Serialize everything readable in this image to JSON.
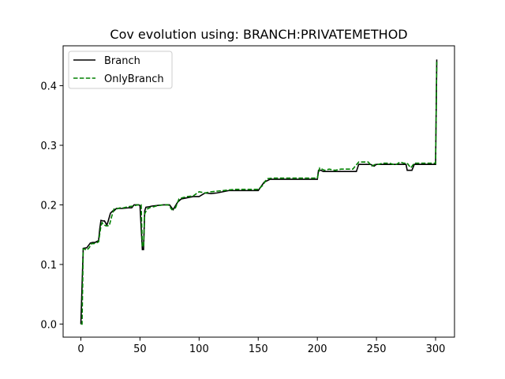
{
  "chart_data": {
    "type": "line",
    "title": "Cov evolution using: BRANCH:PRIVATEMETHOD",
    "xlabel": "",
    "ylabel": "",
    "xlim": [
      -15,
      316
    ],
    "ylim": [
      -0.022,
      0.467
    ],
    "xticks": [
      0,
      50,
      100,
      150,
      200,
      250,
      300
    ],
    "yticks": [
      0.0,
      0.1,
      0.2,
      0.3,
      0.4
    ],
    "ytick_labels": [
      "0.0",
      "0.1",
      "0.2",
      "0.3",
      "0.4"
    ],
    "grid": false,
    "legend_position": "upper-left",
    "series": [
      {
        "name": "Branch",
        "style": "solid",
        "color": "#000000",
        "x": [
          0,
          2,
          5,
          8,
          10,
          12,
          15,
          16,
          17,
          19,
          20,
          22,
          23,
          25,
          27,
          28,
          30,
          32,
          35,
          40,
          43,
          45,
          49,
          50,
          52,
          53,
          54,
          55,
          58,
          60,
          65,
          70,
          75,
          78,
          82,
          85,
          90,
          95,
          100,
          105,
          110,
          115,
          120,
          125,
          130,
          140,
          150,
          155,
          157,
          160,
          165,
          170,
          175,
          180,
          185,
          190,
          195,
          200,
          201,
          203,
          205,
          210,
          215,
          220,
          225,
          230,
          233,
          235,
          238,
          240,
          243,
          245,
          248,
          250,
          253,
          255,
          258,
          260,
          262,
          265,
          270,
          275,
          276,
          280,
          282,
          285,
          290,
          295,
          299,
          300,
          301
        ],
        "y": [
          0.0,
          0.127,
          0.128,
          0.136,
          0.137,
          0.137,
          0.14,
          0.16,
          0.174,
          0.173,
          0.173,
          0.166,
          0.172,
          0.186,
          0.19,
          0.19,
          0.194,
          0.194,
          0.194,
          0.195,
          0.195,
          0.2,
          0.2,
          0.199,
          0.125,
          0.125,
          0.19,
          0.196,
          0.197,
          0.198,
          0.199,
          0.2,
          0.2,
          0.192,
          0.205,
          0.21,
          0.212,
          0.214,
          0.214,
          0.22,
          0.219,
          0.22,
          0.222,
          0.224,
          0.224,
          0.224,
          0.224,
          0.238,
          0.24,
          0.243,
          0.243,
          0.243,
          0.243,
          0.243,
          0.243,
          0.243,
          0.243,
          0.243,
          0.258,
          0.258,
          0.256,
          0.256,
          0.256,
          0.256,
          0.256,
          0.256,
          0.256,
          0.268,
          0.268,
          0.268,
          0.268,
          0.268,
          0.265,
          0.268,
          0.268,
          0.268,
          0.268,
          0.268,
          0.268,
          0.268,
          0.268,
          0.268,
          0.258,
          0.258,
          0.268,
          0.268,
          0.268,
          0.268,
          0.268,
          0.268,
          0.444
        ]
      },
      {
        "name": "OnlyBranch",
        "style": "dashed",
        "color": "#008000",
        "x": [
          0,
          1,
          2,
          3,
          5,
          7,
          9,
          11,
          13,
          15,
          17,
          18,
          19,
          21,
          22,
          24,
          26,
          28,
          30,
          33,
          36,
          40,
          44,
          48,
          51,
          52,
          53,
          54,
          56,
          59,
          62,
          65,
          70,
          74,
          77,
          80,
          83,
          86,
          90,
          95,
          100,
          105,
          110,
          115,
          120,
          130,
          140,
          150,
          154,
          156,
          158,
          162,
          166,
          170,
          175,
          180,
          185,
          190,
          196,
          200,
          202,
          204,
          206,
          210,
          215,
          220,
          225,
          230,
          235,
          237,
          240,
          243,
          246,
          249,
          252,
          255,
          258,
          261,
          264,
          267,
          270,
          273,
          276,
          279,
          282,
          285,
          288,
          292,
          295,
          298,
          300,
          301
        ],
        "y": [
          0.0,
          0.0,
          0.126,
          0.126,
          0.124,
          0.128,
          0.135,
          0.135,
          0.136,
          0.138,
          0.165,
          0.17,
          0.167,
          0.165,
          0.165,
          0.165,
          0.18,
          0.193,
          0.193,
          0.195,
          0.195,
          0.197,
          0.198,
          0.2,
          0.2,
          0.13,
          0.13,
          0.185,
          0.193,
          0.196,
          0.197,
          0.199,
          0.2,
          0.2,
          0.192,
          0.195,
          0.21,
          0.212,
          0.214,
          0.215,
          0.222,
          0.22,
          0.222,
          0.223,
          0.224,
          0.226,
          0.226,
          0.226,
          0.233,
          0.24,
          0.244,
          0.245,
          0.245,
          0.245,
          0.245,
          0.245,
          0.245,
          0.245,
          0.245,
          0.245,
          0.262,
          0.26,
          0.258,
          0.26,
          0.258,
          0.26,
          0.26,
          0.26,
          0.272,
          0.272,
          0.272,
          0.272,
          0.265,
          0.268,
          0.268,
          0.27,
          0.27,
          0.27,
          0.268,
          0.268,
          0.272,
          0.27,
          0.27,
          0.262,
          0.27,
          0.27,
          0.27,
          0.27,
          0.27,
          0.27,
          0.27,
          0.44
        ]
      }
    ]
  }
}
